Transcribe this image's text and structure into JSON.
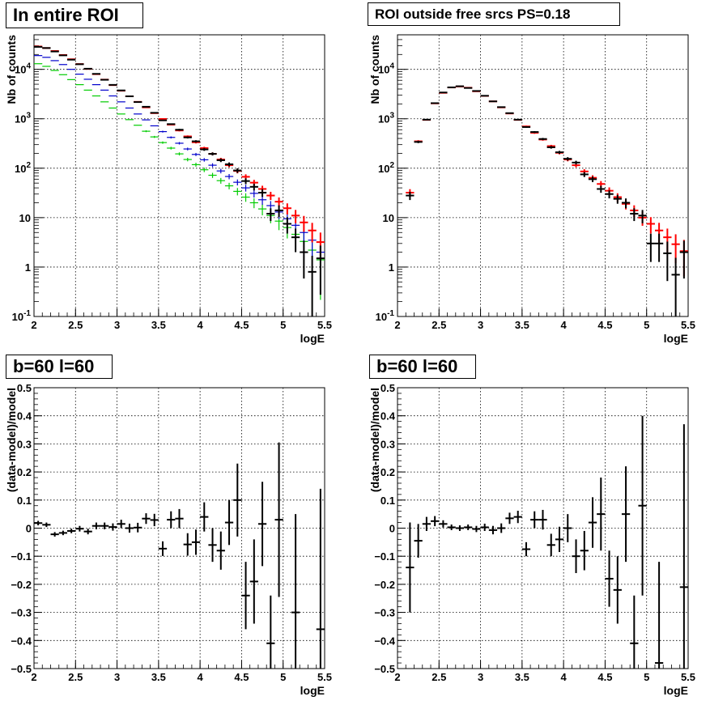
{
  "panels": [
    {
      "title": "In entire ROI"
    },
    {
      "title": "ROI outside free srcs PS=0.18"
    },
    {
      "title": "b=60 l=60"
    },
    {
      "title": "b=60 l=60"
    }
  ],
  "colors": {
    "data": "#000000",
    "model": "#ff0000",
    "blue": "#0000cc",
    "green": "#00cc00"
  },
  "chart_data": [
    {
      "type": "scatter",
      "xlabel": "logE",
      "ylabel": "Nb of counts",
      "xlim": [
        2,
        5.5
      ],
      "ylim": [
        0.1,
        50000
      ],
      "yscale": "log",
      "grid": true,
      "x_ticks": [
        "2",
        "2.5",
        "3",
        "3.5",
        "4",
        "4.5",
        "5",
        "5.5"
      ],
      "y_ticks": [
        {
          "base": "10",
          "exp": "-1"
        },
        {
          "base": "1",
          "exp": ""
        },
        {
          "base": "10",
          "exp": ""
        },
        {
          "base": "10",
          "exp": "2"
        },
        {
          "base": "10",
          "exp": "3"
        },
        {
          "base": "10",
          "exp": "4"
        }
      ],
      "x": [
        2.05,
        2.15,
        2.25,
        2.35,
        2.45,
        2.55,
        2.65,
        2.75,
        2.85,
        2.95,
        3.05,
        3.15,
        3.25,
        3.35,
        3.45,
        3.55,
        3.65,
        3.75,
        3.85,
        3.95,
        4.05,
        4.15,
        4.25,
        4.35,
        4.45,
        4.55,
        4.65,
        4.75,
        4.85,
        4.95,
        5.05,
        5.15,
        5.25,
        5.35,
        5.45
      ],
      "series": [
        {
          "color": "green",
          "values": [
            13000,
            11500,
            9500,
            7800,
            6200,
            4900,
            3800,
            2900,
            2200,
            1650,
            1250,
            960,
            740,
            560,
            430,
            330,
            255,
            195,
            150,
            118,
            93,
            72,
            56,
            44,
            34,
            26,
            20,
            15,
            11,
            8.5,
            6.3,
            4.6,
            3.3,
            2.2,
            1.4
          ]
        },
        {
          "color": "blue",
          "values": [
            19000,
            17500,
            15000,
            12500,
            10000,
            8000,
            6300,
            4900,
            3800,
            2900,
            2200,
            1650,
            1250,
            950,
            720,
            550,
            420,
            320,
            245,
            190,
            148,
            115,
            88,
            68,
            52,
            40,
            31,
            23,
            17.5,
            13,
            9.5,
            7,
            5,
            3.5,
            2
          ]
        },
        {
          "color": "model",
          "values": [
            29000,
            27000,
            23500,
            19500,
            16000,
            12800,
            10200,
            8000,
            6200,
            4800,
            3700,
            2850,
            2200,
            1700,
            1300,
            990,
            760,
            580,
            440,
            335,
            255,
            195,
            150,
            115,
            88,
            67,
            51,
            38,
            28,
            21,
            15.5,
            11,
            8,
            5.5,
            3.2
          ]
        },
        {
          "color": "data",
          "values": [
            28500,
            27000,
            23000,
            19200,
            15700,
            12700,
            10300,
            8100,
            6150,
            4850,
            3750,
            2850,
            2180,
            1750,
            1320,
            930,
            780,
            600,
            420,
            350,
            240,
            195,
            145,
            120,
            90,
            55,
            42,
            32,
            12,
            14,
            7.5,
            4,
            2,
            0.8,
            1.5
          ]
        }
      ]
    },
    {
      "type": "scatter",
      "xlabel": "logE",
      "ylabel": "Nb of counts",
      "xlim": [
        2,
        5.5
      ],
      "ylim": [
        0.1,
        50000
      ],
      "yscale": "log",
      "grid": true,
      "x_ticks": [
        "2",
        "2.5",
        "3",
        "3.5",
        "4",
        "4.5",
        "5",
        "5.5"
      ],
      "y_ticks": [
        {
          "base": "10",
          "exp": "-1"
        },
        {
          "base": "1",
          "exp": ""
        },
        {
          "base": "10",
          "exp": ""
        },
        {
          "base": "10",
          "exp": "2"
        },
        {
          "base": "10",
          "exp": "3"
        },
        {
          "base": "10",
          "exp": "4"
        }
      ],
      "x": [
        2.15,
        2.25,
        2.35,
        2.45,
        2.55,
        2.65,
        2.75,
        2.85,
        2.95,
        3.05,
        3.15,
        3.25,
        3.35,
        3.45,
        3.55,
        3.65,
        3.75,
        3.85,
        3.95,
        4.05,
        4.15,
        4.25,
        4.35,
        4.45,
        4.55,
        4.65,
        4.75,
        4.85,
        4.95,
        5.05,
        5.15,
        5.25,
        5.35,
        5.45
      ],
      "series": [
        {
          "color": "model",
          "values": [
            32,
            350,
            950,
            2050,
            3350,
            4300,
            4500,
            4250,
            3600,
            2900,
            2250,
            1700,
            1280,
            950,
            700,
            520,
            380,
            280,
            205,
            150,
            115,
            86,
            64,
            48,
            35,
            26,
            19,
            14,
            10,
            7.5,
            5.5,
            4,
            2.9,
            2.1
          ]
        },
        {
          "color": "data",
          "values": [
            28,
            340,
            960,
            2070,
            3400,
            4320,
            4550,
            4200,
            3650,
            2920,
            2250,
            1720,
            1300,
            960,
            680,
            540,
            390,
            265,
            210,
            155,
            130,
            75,
            60,
            38,
            30,
            24,
            20,
            12,
            11,
            3,
            3,
            1.9,
            0.7,
            2
          ]
        }
      ]
    },
    {
      "type": "scatter",
      "xlabel": "logE",
      "ylabel": "(data-model)/model",
      "xlim": [
        2,
        5.5
      ],
      "ylim": [
        -0.5,
        0.5
      ],
      "grid": true,
      "x_ticks": [
        "2",
        "2.5",
        "3",
        "3.5",
        "4",
        "4.5",
        "5",
        "5.5"
      ],
      "y_ticks": [
        "-0.5",
        "-0.4",
        "-0.3",
        "-0.2",
        "-0.1",
        "0",
        "0.1",
        "0.2",
        "0.3",
        "0.4",
        "0.5"
      ],
      "x": [
        2.05,
        2.15,
        2.25,
        2.35,
        2.45,
        2.55,
        2.65,
        2.75,
        2.85,
        2.95,
        3.05,
        3.15,
        3.25,
        3.35,
        3.45,
        3.55,
        3.65,
        3.75,
        3.85,
        3.95,
        4.05,
        4.15,
        4.25,
        4.35,
        4.45,
        4.55,
        4.65,
        4.75,
        4.85,
        4.95,
        5.15,
        5.45
      ],
      "series": [
        {
          "color": "data",
          "values": [
            0.018,
            0.012,
            -0.022,
            -0.017,
            -0.01,
            -0.002,
            -0.012,
            0.008,
            0.008,
            0.004,
            0.015,
            0.0,
            0.002,
            0.034,
            0.029,
            -0.073,
            0.03,
            0.034,
            -0.058,
            -0.05,
            0.04,
            -0.06,
            -0.08,
            0.02,
            0.1,
            -0.24,
            -0.19,
            0.015,
            -0.41,
            0.03,
            -0.3,
            -0.36
          ],
          "errors": [
            0.008,
            0.008,
            0.008,
            0.008,
            0.008,
            0.01,
            0.01,
            0.012,
            0.012,
            0.013,
            0.015,
            0.016,
            0.017,
            0.019,
            0.022,
            0.026,
            0.03,
            0.034,
            0.04,
            0.045,
            0.052,
            0.06,
            0.068,
            0.08,
            0.13,
            0.12,
            0.15,
            0.15,
            0.17,
            0.275,
            0.35,
            0.5
          ]
        }
      ]
    },
    {
      "type": "scatter",
      "xlabel": "logE",
      "ylabel": "(data-model)/model",
      "xlim": [
        2,
        5.5
      ],
      "ylim": [
        -0.5,
        0.5
      ],
      "grid": true,
      "x_ticks": [
        "2",
        "2.5",
        "3",
        "3.5",
        "4",
        "4.5",
        "5",
        "5.5"
      ],
      "y_ticks": [
        "-0.5",
        "-0.4",
        "-0.3",
        "-0.2",
        "-0.1",
        "0",
        "0.1",
        "0.2",
        "0.3",
        "0.4",
        "0.5"
      ],
      "x": [
        2.15,
        2.25,
        2.35,
        2.45,
        2.55,
        2.65,
        2.75,
        2.85,
        2.95,
        3.05,
        3.15,
        3.25,
        3.35,
        3.45,
        3.55,
        3.65,
        3.75,
        3.85,
        3.95,
        4.05,
        4.15,
        4.25,
        4.35,
        4.45,
        4.55,
        4.65,
        4.75,
        4.85,
        4.95,
        5.15,
        5.45
      ],
      "series": [
        {
          "color": "data",
          "values": [
            -0.14,
            -0.045,
            0.015,
            0.025,
            0.015,
            0.003,
            0.0,
            0.003,
            -0.003,
            0.003,
            -0.007,
            0.0,
            0.035,
            0.04,
            -0.075,
            0.03,
            0.03,
            -0.06,
            -0.04,
            0.0,
            -0.1,
            -0.08,
            0.02,
            0.05,
            -0.18,
            -0.22,
            0.05,
            -0.41,
            0.08,
            -0.48,
            -0.21
          ],
          "errors": [
            0.16,
            0.06,
            0.025,
            0.018,
            0.013,
            0.01,
            0.01,
            0.01,
            0.011,
            0.013,
            0.015,
            0.017,
            0.02,
            0.022,
            0.025,
            0.03,
            0.035,
            0.04,
            0.045,
            0.05,
            0.06,
            0.07,
            0.09,
            0.13,
            0.1,
            0.12,
            0.17,
            0.17,
            0.32,
            0.36,
            0.58
          ]
        }
      ]
    }
  ]
}
